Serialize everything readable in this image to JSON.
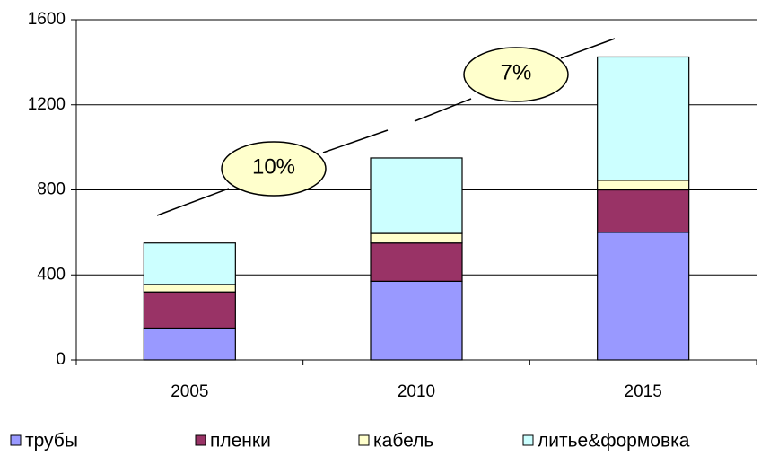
{
  "chart_data": {
    "type": "stacked_bar",
    "categories": [
      "2005",
      "2010",
      "2015"
    ],
    "series": [
      {
        "name": "трубы",
        "color": "#9999ff",
        "values": [
          150,
          370,
          600
        ]
      },
      {
        "name": "пленки",
        "color": "#993366",
        "values": [
          170,
          180,
          200
        ]
      },
      {
        "name": "кабель",
        "color": "#ffffcc",
        "values": [
          35,
          45,
          45
        ]
      },
      {
        "name": "литье&формовка",
        "color": "#ccffff",
        "values": [
          195,
          355,
          580
        ]
      }
    ],
    "ylim": [
      0,
      1600
    ],
    "yticks": [
      0,
      400,
      800,
      1200,
      1600
    ],
    "grid": true,
    "annotations": [
      "10%",
      "7%"
    ],
    "legend": "bottom"
  }
}
